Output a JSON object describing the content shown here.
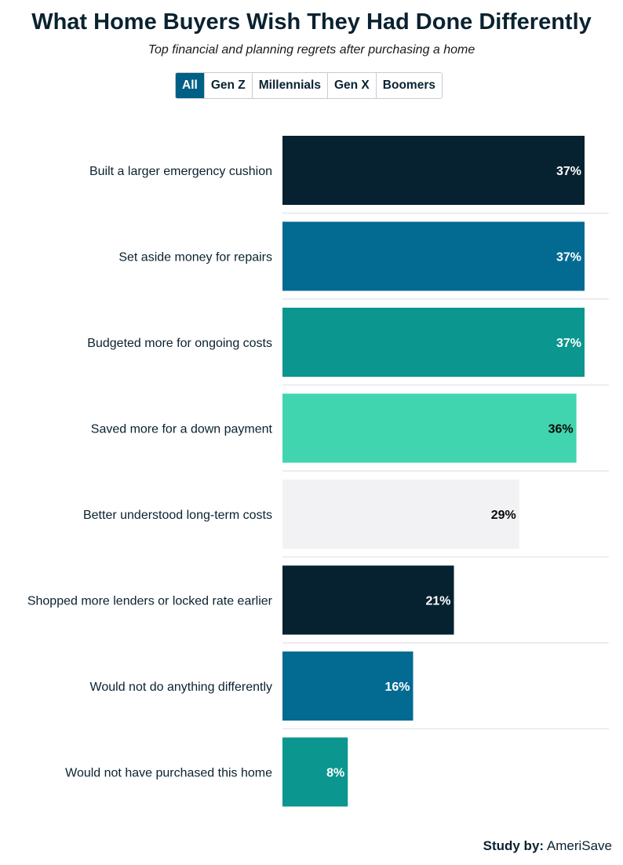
{
  "header": {
    "title": "What Home Buyers Wish They Had Done Differently",
    "subtitle": "Top financial and planning regrets after purchasing a home"
  },
  "tabs": [
    {
      "label": "All",
      "active": true
    },
    {
      "label": "Gen Z",
      "active": false
    },
    {
      "label": "Millennials",
      "active": false
    },
    {
      "label": "Gen X",
      "active": false
    },
    {
      "label": "Boomers",
      "active": false
    }
  ],
  "chart_data": {
    "type": "bar",
    "orientation": "horizontal",
    "title": "What Home Buyers Wish They Had Done Differently",
    "xlabel": "",
    "ylabel": "",
    "xlim": [
      0,
      37
    ],
    "grid": false,
    "categories": [
      "Built a larger emergency cushion",
      "Set aside money for repairs",
      "Budgeted more for ongoing costs",
      "Saved more for a down payment",
      "Better understood long-term costs",
      "Shopped more lenders or locked rate earlier",
      "Would not do anything differently",
      "Would not have purchased this home"
    ],
    "values": [
      37,
      37,
      37,
      36,
      29,
      21,
      16,
      8
    ],
    "value_labels": [
      "37%",
      "37%",
      "37%",
      "36%",
      "29%",
      "21%",
      "16%",
      "8%"
    ],
    "bar_colors": [
      "#06212f",
      "#036a92",
      "#0b968f",
      "#40d5af",
      "#f2f1f3",
      "#06212f",
      "#036a92",
      "#0b968f"
    ],
    "label_colors": [
      "#ffffff",
      "#ffffff",
      "#ffffff",
      "#0a0a0a",
      "#0a0a0a",
      "#ffffff",
      "#ffffff",
      "#ffffff"
    ]
  },
  "footer": {
    "study_by_label": "Study by:",
    "source": "AmeriSave"
  }
}
